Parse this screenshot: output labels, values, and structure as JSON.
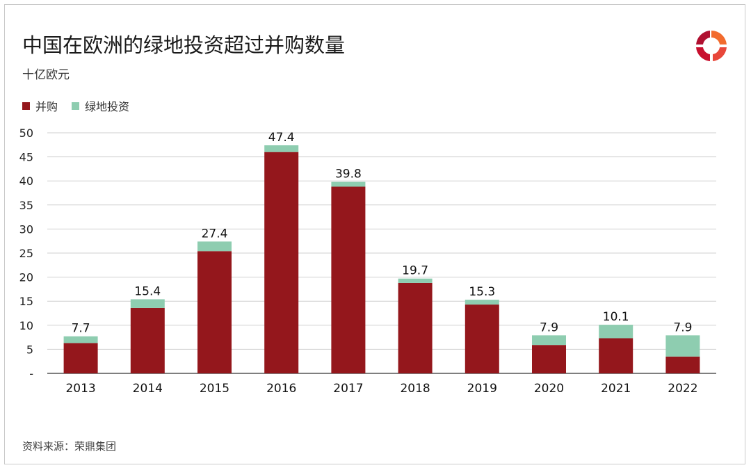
{
  "title": "中国在欧洲的绿地投资超过并购数量",
  "unit": "十亿欧元",
  "source": "资料来源：荣鼎集团",
  "colors": {
    "mna": "#94171c",
    "greenfield": "#8ecdb0",
    "grid": "#cfcfcf",
    "axis": "#555555"
  },
  "legend": [
    {
      "label": "并购",
      "color": "#94171c"
    },
    {
      "label": "绿地投资",
      "color": "#8ecdb0"
    }
  ],
  "logo": {
    "icon": "rhodium-group-logo-icon"
  },
  "chart_data": {
    "type": "bar",
    "stacked": true,
    "categories": [
      "2013",
      "2014",
      "2015",
      "2016",
      "2017",
      "2018",
      "2019",
      "2020",
      "2021",
      "2022"
    ],
    "series": [
      {
        "name": "并购",
        "values": [
          6.3,
          13.6,
          25.4,
          46.0,
          38.8,
          18.8,
          14.3,
          5.9,
          7.3,
          3.5
        ]
      },
      {
        "name": "绿地投资",
        "values": [
          1.4,
          1.8,
          2.0,
          1.4,
          1.0,
          0.9,
          1.0,
          2.0,
          2.8,
          4.4
        ]
      }
    ],
    "totals": [
      "7.7",
      "15.4",
      "27.4",
      "47.4",
      "39.8",
      "19.7",
      "15.3",
      "7.9",
      "10.1",
      "7.9"
    ],
    "yticks": [
      "-",
      "5",
      "10",
      "15",
      "20",
      "25",
      "30",
      "35",
      "40",
      "45",
      "50"
    ],
    "ylim": [
      0,
      50
    ],
    "grid": true,
    "legend_position": "top-left"
  }
}
